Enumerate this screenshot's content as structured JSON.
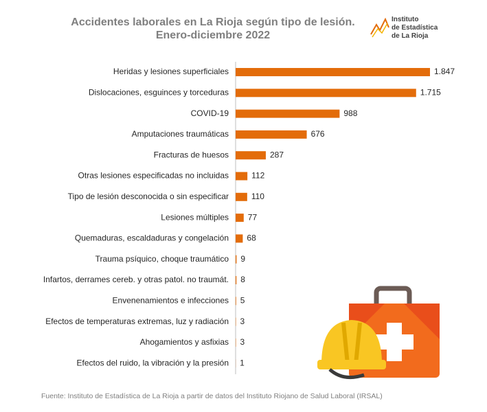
{
  "chart_data": {
    "type": "bar",
    "orientation": "horizontal",
    "title": [
      "Accidentes laborales en La Rioja según tipo de lesión.",
      "Enero-diciembre 2022"
    ],
    "logo": [
      "Instituto",
      "de Estadística",
      "de La Rioja"
    ],
    "source": "Fuente: Instituto de Estadística de La Rioja a partir de datos del Instituto Riojano de Salud Laboral (IRSAL)",
    "categories": [
      "Heridas y lesiones superficiales",
      "Dislocaciones, esguinces y torceduras",
      "COVID-19",
      "Amputaciones traumáticas",
      "Fracturas de huesos",
      "Otras lesiones especificadas no incluidas",
      "Tipo de lesión desconocida o sin especificar",
      "Lesiones múltiples",
      "Quemaduras, escaldaduras y congelación",
      "Trauma psíquico, choque traumático",
      "Infartos, derrames cereb. y otras patol. no traumát.",
      "Envenenamientos e infecciones",
      "Efectos de temperaturas extremas, luz y radiación",
      "Ahogamientos y asfixias",
      "Efectos del ruido, la vibración y la presión"
    ],
    "values": [
      1847,
      1715,
      988,
      676,
      287,
      112,
      110,
      77,
      68,
      9,
      8,
      5,
      3,
      3,
      1
    ],
    "value_labels": [
      "1.847",
      "1.715",
      "988",
      "676",
      "287",
      "112",
      "110",
      "77",
      "68",
      "9",
      "8",
      "5",
      "3",
      "3",
      "1"
    ],
    "color": "#e36c0a"
  }
}
